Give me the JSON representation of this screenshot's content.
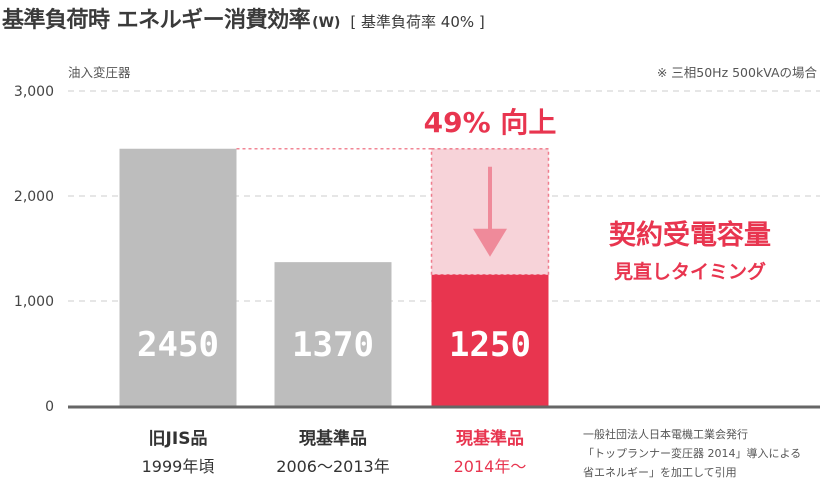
{
  "title": {
    "main": "基準負荷時 エネルギー消費効率",
    "unit": "(W)",
    "sub": "[ 基準負荷率 40% ]"
  },
  "labels": {
    "y_axis_label": "油入変圧器",
    "footnote": "※ 三相50Hz 500kVAの場合",
    "improvement": "49% 向上",
    "callout_line1": "契約受電容量",
    "callout_line2": "見直しタイミング"
  },
  "source": {
    "lines": [
      "一般社団法人日本電機工業会発行",
      "「トップランナー変圧器 2014」導入による",
      "省エネルギー」を加工して引用"
    ]
  },
  "colors": {
    "gray_bar": "#bdbdbd",
    "highlight_bar": "#e8354f",
    "highlight_ghost": "#f7d3d9",
    "highlight_text": "#e8354f",
    "text_dark": "#333333",
    "grid": "#cccccc",
    "baseline": "#666666",
    "arrow": "#ef8a9a"
  },
  "chart_data": {
    "type": "bar",
    "categories": [
      "旧JIS品",
      "現基準品",
      "現基準品"
    ],
    "category_sublabels": [
      "1999年頃",
      "2006～2013年",
      "2014年～"
    ],
    "values": [
      2450,
      1370,
      1250
    ],
    "value_labels": [
      "2450",
      "1370",
      "1250"
    ],
    "highlight_index": 2,
    "ghost_value": 2450,
    "ylim": [
      0,
      3000
    ],
    "yticks": [
      0,
      1000,
      2000,
      3000
    ],
    "ytick_labels": [
      "0",
      "1,000",
      "2,000",
      "3,000"
    ],
    "grid": true
  }
}
